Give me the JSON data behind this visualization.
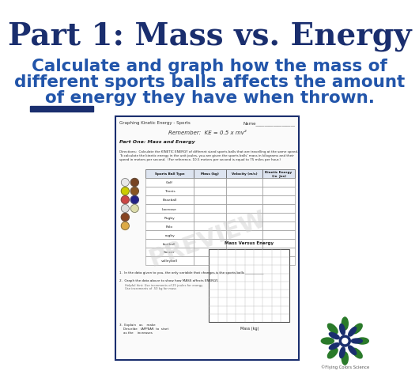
{
  "bg_color": "#ffffff",
  "title_text": "Part 1: Mass vs. Energy",
  "title_color": "#1a2e6e",
  "title_fontsize": 28,
  "subtitle_lines": [
    "Calculate and graph how the mass of",
    "different sports balls affects the amount",
    "of energy they have when thrown."
  ],
  "subtitle_color": "#2255aa",
  "subtitle_fontsize": 15.5,
  "accent_bar_color": "#1a2e6e",
  "worksheet_border_color": "#1a2e6e",
  "worksheet_title": "Graphing Kinetic Energy - Sports",
  "worksheet_name_label": "Name__________________",
  "worksheet_formula": "Remember:  KE = 0.5 x mv²",
  "worksheet_section": "Part One: Mass and Energy",
  "worksheet_q1": "1.  In the data given to you, the only variable that changes is the sports balls ___________",
  "worksheet_q2": "2.  Graph the data above to show how MASS affects ENERGY.",
  "worksheet_hint": "Helpful hint: Use increments of 25 joules for energy\nUse increments of .50 kg for mass",
  "chart_title": "Mass Versus Energy",
  "chart_xlabel": "Mass (kg)",
  "ball_names": [
    "Golf",
    "Tennis",
    "Baseball",
    "Lacrosse",
    "Rugby",
    "Polo",
    "rugby",
    "football",
    "Soccer",
    "volleyball"
  ],
  "ball_colors": [
    "#e8e8e8",
    "#cccc00",
    "#cc4444",
    "#dddddd",
    "#884422",
    "#ddaa44",
    "#774422",
    "#885522",
    "#222288",
    "#ddddaa"
  ],
  "logo_color_blue": "#1a2e6e",
  "logo_color_green": "#2a7a2a",
  "copyright": "©Flying Colors Science"
}
